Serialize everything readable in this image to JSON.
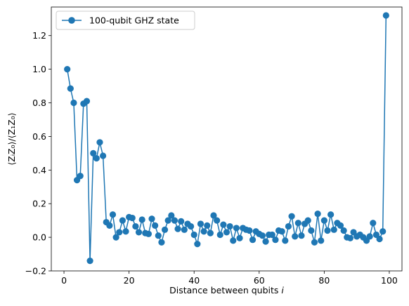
{
  "chart_data": {
    "type": "line",
    "marker": "circle",
    "color": "#1f77b4",
    "xlabel_text": "Distance between qubits ",
    "xlabel_var": "i",
    "ylabel_text": "⟨ZᵢZ₀⟩/⟨Z₁Z₀⟩",
    "xlim": [
      -3.9,
      103.9
    ],
    "ylim": [
      -0.2,
      1.37
    ],
    "xticks": [
      0,
      20,
      40,
      60,
      80,
      100
    ],
    "yticks": [
      -0.2,
      0.0,
      0.2,
      0.4,
      0.6,
      0.8,
      1.0,
      1.2
    ],
    "ytick_labels": [
      "−0.2",
      "0.0",
      "0.2",
      "0.4",
      "0.6",
      "0.8",
      "1.0",
      "1.2"
    ],
    "grid": false,
    "legend_position": "top-left",
    "series": [
      {
        "name": "100-qubit GHZ state",
        "x": [
          1,
          2,
          3,
          4,
          5,
          6,
          7,
          8,
          9,
          10,
          11,
          12,
          13,
          14,
          15,
          16,
          17,
          18,
          19,
          20,
          21,
          22,
          23,
          24,
          25,
          26,
          27,
          28,
          29,
          30,
          31,
          32,
          33,
          34,
          35,
          36,
          37,
          38,
          39,
          40,
          41,
          42,
          43,
          44,
          45,
          46,
          47,
          48,
          49,
          50,
          51,
          52,
          53,
          54,
          55,
          56,
          57,
          58,
          59,
          60,
          61,
          62,
          63,
          64,
          65,
          66,
          67,
          68,
          69,
          70,
          71,
          72,
          73,
          74,
          75,
          76,
          77,
          78,
          79,
          80,
          81,
          82,
          83,
          84,
          85,
          86,
          87,
          88,
          89,
          90,
          91,
          92,
          93,
          94,
          95,
          96,
          97,
          98,
          99
        ],
        "y": [
          1.0,
          0.885,
          0.8,
          0.34,
          0.365,
          0.795,
          0.81,
          -0.14,
          0.5,
          0.47,
          0.565,
          0.485,
          0.09,
          0.07,
          0.135,
          0.0,
          0.03,
          0.1,
          0.035,
          0.12,
          0.115,
          0.065,
          0.03,
          0.105,
          0.025,
          0.02,
          0.11,
          0.07,
          0.01,
          -0.03,
          0.045,
          0.1,
          0.13,
          0.1,
          0.05,
          0.095,
          0.045,
          0.08,
          0.065,
          0.015,
          -0.04,
          0.08,
          0.035,
          0.07,
          0.025,
          0.13,
          0.1,
          0.015,
          0.075,
          0.03,
          0.065,
          -0.02,
          0.055,
          -0.005,
          0.055,
          0.045,
          0.04,
          -0.015,
          0.035,
          0.02,
          0.01,
          -0.025,
          0.015,
          0.015,
          -0.015,
          0.04,
          0.035,
          -0.02,
          0.065,
          0.125,
          0.005,
          0.085,
          0.01,
          0.08,
          0.1,
          0.04,
          -0.03,
          0.14,
          -0.02,
          0.1,
          0.04,
          0.135,
          0.045,
          0.085,
          0.07,
          0.04,
          0.0,
          -0.005,
          0.03,
          0.005,
          0.015,
          0.0,
          -0.02,
          0.005,
          0.085,
          0.015,
          -0.01,
          0.035,
          1.32
        ]
      }
    ]
  }
}
